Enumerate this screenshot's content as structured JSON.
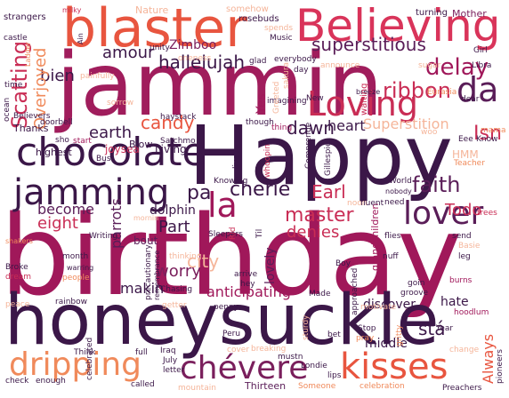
{
  "palette": {
    "deep": "#3b1748",
    "plum": "#5a1d58",
    "magenta": "#a01d5c",
    "rose": "#c92d55",
    "coral": "#e8553f",
    "orange": "#f08a5b",
    "peach": "#f5b59a",
    "light": "#f7c9b3"
  },
  "words": [
    {
      "text": "Happy",
      "color": "#3b1748"
    },
    {
      "text": "birthday",
      "color": "#a0185a"
    },
    {
      "text": "jammin",
      "color": "#a01d5c"
    },
    {
      "text": "honeysuckle",
      "color": "#3b1748"
    },
    {
      "text": "blaster",
      "color": "#e8553f"
    },
    {
      "text": "Believing",
      "color": "#d9345a"
    },
    {
      "text": "chocolate",
      "color": "#3b1748"
    },
    {
      "text": "jamming",
      "color": "#3b1748"
    },
    {
      "text": "kisses",
      "color": "#e8553f"
    },
    {
      "text": "dripping",
      "color": "#f08a5b"
    },
    {
      "text": "chévere",
      "color": "#7a1f5c"
    },
    {
      "text": "Loving",
      "color": "#c92d55"
    },
    {
      "text": "la",
      "color": "#a0185a"
    },
    {
      "text": "da",
      "color": "#5a1d58"
    },
    {
      "text": "lover",
      "color": "#5a1d58"
    },
    {
      "text": "superstitious",
      "color": "#5a1d58"
    },
    {
      "text": "delay",
      "color": "#a0185a"
    },
    {
      "text": "ribbon",
      "color": "#c92d55"
    },
    {
      "text": "Isn",
      "color": "#c92d55"
    },
    {
      "text": "hallelujah",
      "color": "#3b1748"
    },
    {
      "text": "amour",
      "color": "#3b1748"
    },
    {
      "text": "Zimboo",
      "color": "#7a1f5c"
    },
    {
      "text": "Scatting",
      "color": "#c92d55"
    },
    {
      "text": "bien",
      "color": "#3b1748"
    },
    {
      "text": "Overjoyed",
      "color": "#f08a5b"
    },
    {
      "text": "candy",
      "color": "#e8553f"
    },
    {
      "text": "earth",
      "color": "#3b1748"
    },
    {
      "text": "dawn",
      "color": "#3b1748"
    },
    {
      "text": "heart",
      "color": "#3b1748"
    },
    {
      "text": "Superstition",
      "color": "#f5b59a"
    },
    {
      "text": "cherie",
      "color": "#3b1748"
    },
    {
      "text": "pa",
      "color": "#3b1748"
    },
    {
      "text": "Earl",
      "color": "#c92d55"
    },
    {
      "text": "faith",
      "color": "#5a1d58"
    },
    {
      "text": "Todo",
      "color": "#c92d55"
    },
    {
      "text": "master",
      "color": "#c92d55"
    },
    {
      "text": "denies",
      "color": "#c92d55"
    },
    {
      "text": "eight",
      "color": "#c92d55"
    },
    {
      "text": "become",
      "color": "#5a1d58"
    },
    {
      "text": "Part",
      "color": "#3b1748"
    },
    {
      "text": "dolphin",
      "color": "#3b1748"
    },
    {
      "text": "parrots",
      "color": "#5a1d58"
    },
    {
      "text": "city",
      "color": "#f5b59a"
    },
    {
      "text": "worry",
      "color": "#7a1f5c"
    },
    {
      "text": "anticipating",
      "color": "#a0185a"
    },
    {
      "text": "makin",
      "color": "#3b1748"
    },
    {
      "text": "lovely",
      "color": "#5a1d58"
    },
    {
      "text": "Always",
      "color": "#e8553f"
    },
    {
      "text": "stá",
      "color": "#3b1748"
    },
    {
      "text": "hate",
      "color": "#3b1748"
    },
    {
      "text": "discover",
      "color": "#3b1748"
    },
    {
      "text": "middle",
      "color": "#3b1748"
    },
    {
      "text": "HMM",
      "color": "#f5b59a"
    },
    {
      "text": "Living",
      "color": "#3b1748"
    },
    {
      "text": "highest",
      "color": "#3b1748"
    },
    {
      "text": "joysea",
      "color": "#c92d55"
    },
    {
      "text": "Blow",
      "color": "#3b1748"
    },
    {
      "text": "Thanks",
      "color": "#3b1748"
    },
    {
      "text": "Nature",
      "color": "#f5b59a"
    },
    {
      "text": "somehow",
      "color": "#f5b59a"
    },
    {
      "text": "rosebuds",
      "color": "#3b1748"
    },
    {
      "text": "turning",
      "color": "#3b1748"
    },
    {
      "text": "Mother",
      "color": "#7a1f5c"
    },
    {
      "text": "strangers",
      "color": "#3b1748"
    },
    {
      "text": "milky",
      "color": "#c92d55"
    },
    {
      "text": "castle",
      "color": "#3b1748"
    },
    {
      "text": "Music",
      "color": "#3b1748"
    },
    {
      "text": "Girl",
      "color": "#3b1748"
    },
    {
      "text": "glad",
      "color": "#3b1748"
    },
    {
      "text": "everybody",
      "color": "#3b1748"
    },
    {
      "text": "Libra",
      "color": "#3b1748"
    },
    {
      "text": "Eurasia",
      "color": "#f08a5b"
    },
    {
      "text": "sugar",
      "color": "#f5b59a"
    },
    {
      "text": "day",
      "color": "#3b1748"
    },
    {
      "text": "time",
      "color": "#3b1748"
    },
    {
      "text": "Believers",
      "color": "#3b1748"
    },
    {
      "text": "sorrow",
      "color": "#f5b59a"
    },
    {
      "text": "breeze",
      "color": "#3b1748"
    },
    {
      "text": "New",
      "color": "#3b1748"
    },
    {
      "text": "dear",
      "color": "#3b1748"
    },
    {
      "text": "mama",
      "color": "#f08a5b"
    },
    {
      "text": "Eee",
      "color": "#3b1748"
    },
    {
      "text": "Know",
      "color": "#3b1748"
    },
    {
      "text": "sho",
      "color": "#3b1748"
    },
    {
      "text": "start",
      "color": "#a0185a"
    },
    {
      "text": "Satchmo",
      "color": "#3b1748"
    },
    {
      "text": "woo",
      "color": "#f5b59a"
    },
    {
      "text": "doorbell",
      "color": "#3b1748"
    },
    {
      "text": "thing",
      "color": "#a0185a"
    },
    {
      "text": "Teacher",
      "color": "#f08a5b"
    },
    {
      "text": "World",
      "color": "#3b1748"
    },
    {
      "text": "nobody",
      "color": "#3b1748"
    },
    {
      "text": "Knowing",
      "color": "#3b1748"
    },
    {
      "text": "noon",
      "color": "#f5b59a"
    },
    {
      "text": "need",
      "color": "#3b1748"
    },
    {
      "text": "trees",
      "color": "#c92d55"
    },
    {
      "text": "shakers",
      "color": "#f08a5b"
    },
    {
      "text": "Writing",
      "color": "#3b1748"
    },
    {
      "text": "flies",
      "color": "#3b1748"
    },
    {
      "text": "send",
      "color": "#3b1748"
    },
    {
      "text": "Basie",
      "color": "#f5b59a"
    },
    {
      "text": "leg",
      "color": "#3b1748"
    },
    {
      "text": "nuff",
      "color": "#3b1748"
    },
    {
      "text": "Broke",
      "color": "#3b1748"
    },
    {
      "text": "warring",
      "color": "#3b1748"
    },
    {
      "text": "month",
      "color": "#3b1748"
    },
    {
      "text": "dream",
      "color": "#c92d55"
    },
    {
      "text": "people",
      "color": "#f08a5b"
    },
    {
      "text": "bout",
      "color": "#5a1d58"
    },
    {
      "text": "Chasing",
      "color": "#3b1748"
    },
    {
      "text": "arrive",
      "color": "#3b1748"
    },
    {
      "text": "hey",
      "color": "#3b1748"
    },
    {
      "text": "Boy",
      "color": "#3b1748"
    },
    {
      "text": "goin",
      "color": "#3b1748"
    },
    {
      "text": "groove",
      "color": "#3b1748"
    },
    {
      "text": "burns",
      "color": "#a0185a"
    },
    {
      "text": "hoodlum",
      "color": "#a0185a"
    },
    {
      "text": "Made",
      "color": "#3b1748"
    },
    {
      "text": "penny",
      "color": "#3b1748"
    },
    {
      "text": "getter",
      "color": "#f5b59a"
    },
    {
      "text": "rainbow",
      "color": "#3b1748"
    },
    {
      "text": "peace",
      "color": "#f5b59a"
    },
    {
      "text": "Year",
      "color": "#3b1748"
    },
    {
      "text": "Stop",
      "color": "#3b1748"
    },
    {
      "text": "pray",
      "color": "#f08a5b"
    },
    {
      "text": "bet",
      "color": "#3b1748"
    },
    {
      "text": "change",
      "color": "#f5b59a"
    },
    {
      "text": "Think",
      "color": "#3b1748"
    },
    {
      "text": "full",
      "color": "#3b1748"
    },
    {
      "text": "July",
      "color": "#3b1748"
    },
    {
      "text": "letter",
      "color": "#3b1748"
    },
    {
      "text": "cover",
      "color": "#f5b59a"
    },
    {
      "text": "breaking",
      "color": "#f5b59a"
    },
    {
      "text": "Londie",
      "color": "#3b1748"
    },
    {
      "text": "lips",
      "color": "#3b1748"
    },
    {
      "text": "Thirteen",
      "color": "#5a1d58"
    },
    {
      "text": "Someone",
      "color": "#f08a5b"
    },
    {
      "text": "celebration",
      "color": "#f08a5b"
    },
    {
      "text": "Preachers",
      "color": "#3b1748"
    },
    {
      "text": "check",
      "color": "#3b1748"
    },
    {
      "text": "enough",
      "color": "#3b1748"
    },
    {
      "text": "called",
      "color": "#3b1748"
    },
    {
      "text": "mountain",
      "color": "#f5b59a"
    },
    {
      "text": "Iraq",
      "color": "#3b1748"
    },
    {
      "text": "Ain",
      "color": "#3b1748"
    },
    {
      "text": "unity",
      "color": "#3b1748"
    },
    {
      "text": "oneness",
      "color": "#f5b59a"
    },
    {
      "text": "ocean",
      "color": "#3b1748"
    },
    {
      "text": "haystack",
      "color": "#3b1748"
    },
    {
      "text": "imagining",
      "color": "#3b1748"
    },
    {
      "text": "waiting",
      "color": "#c92d55"
    },
    {
      "text": "Yes",
      "color": "#a0185a"
    },
    {
      "text": "Greeted",
      "color": "#f5b59a"
    },
    {
      "text": "though",
      "color": "#3b1748"
    },
    {
      "text": "whoopin",
      "color": "#c92d55"
    },
    {
      "text": "lived",
      "color": "#3b1748"
    },
    {
      "text": "Comprende",
      "color": "#3b1748"
    },
    {
      "text": "Gillespie",
      "color": "#3b1748"
    },
    {
      "text": "grandchildren",
      "color": "#a0185a"
    },
    {
      "text": "fluent",
      "color": "#3b1748"
    },
    {
      "text": "Sleepers",
      "color": "#3b1748"
    },
    {
      "text": "Til",
      "color": "#3b1748"
    },
    {
      "text": "Rid",
      "color": "#c92d55"
    },
    {
      "text": "precautionary",
      "color": "#3b1748"
    },
    {
      "text": "remembrance",
      "color": "#3b1748"
    },
    {
      "text": "thinking",
      "color": "#f5b59a"
    },
    {
      "text": "approached",
      "color": "#3b1748"
    },
    {
      "text": "motivate",
      "color": "#f5b59a"
    },
    {
      "text": "sturdy",
      "color": "#f5b59a"
    },
    {
      "text": "gritty",
      "color": "#f08a5b"
    },
    {
      "text": "pioneers",
      "color": "#3b1748"
    },
    {
      "text": "celebrated",
      "color": "#3b1748"
    },
    {
      "text": "Peru",
      "color": "#3b1748"
    },
    {
      "text": "Ladder",
      "color": "#f08a5b"
    },
    {
      "text": "mornin",
      "color": "#f5b59a"
    },
    {
      "text": "painfully",
      "color": "#f5b59a"
    },
    {
      "text": "spends",
      "color": "#f5b59a"
    },
    {
      "text": "Bus",
      "color": "#3b1748"
    },
    {
      "text": "mustn",
      "color": "#3b1748"
    },
    {
      "text": "announce",
      "color": "#f5b59a"
    },
    {
      "text": "sakura",
      "color": "#f5b59a"
    }
  ]
}
